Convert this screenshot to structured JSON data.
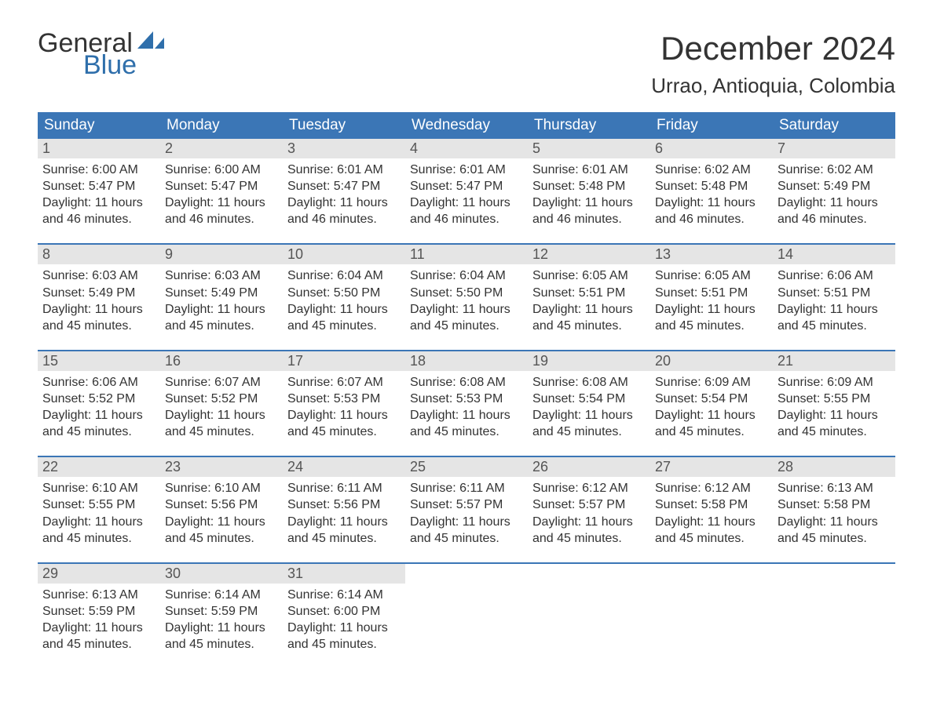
{
  "logo": {
    "general": "General",
    "blue": "Blue",
    "sail_color": "#2f6fab"
  },
  "title": "December 2024",
  "location": "Urrao, Antioquia, Colombia",
  "colors": {
    "header_bg": "#3b76b6",
    "header_text": "#ffffff",
    "daynum_bg": "#e5e5e5",
    "week_divider": "#3b76b6",
    "body_text": "#333333",
    "page_bg": "#ffffff"
  },
  "typography": {
    "title_fontsize": 42,
    "location_fontsize": 26,
    "dayheader_fontsize": 19,
    "daynum_fontsize": 18,
    "cell_fontsize": 16
  },
  "day_headers": [
    "Sunday",
    "Monday",
    "Tuesday",
    "Wednesday",
    "Thursday",
    "Friday",
    "Saturday"
  ],
  "weeks": [
    [
      {
        "n": "1",
        "sr": "6:00 AM",
        "ss": "5:47 PM",
        "dl": "11 hours and 46 minutes."
      },
      {
        "n": "2",
        "sr": "6:00 AM",
        "ss": "5:47 PM",
        "dl": "11 hours and 46 minutes."
      },
      {
        "n": "3",
        "sr": "6:01 AM",
        "ss": "5:47 PM",
        "dl": "11 hours and 46 minutes."
      },
      {
        "n": "4",
        "sr": "6:01 AM",
        "ss": "5:47 PM",
        "dl": "11 hours and 46 minutes."
      },
      {
        "n": "5",
        "sr": "6:01 AM",
        "ss": "5:48 PM",
        "dl": "11 hours and 46 minutes."
      },
      {
        "n": "6",
        "sr": "6:02 AM",
        "ss": "5:48 PM",
        "dl": "11 hours and 46 minutes."
      },
      {
        "n": "7",
        "sr": "6:02 AM",
        "ss": "5:49 PM",
        "dl": "11 hours and 46 minutes."
      }
    ],
    [
      {
        "n": "8",
        "sr": "6:03 AM",
        "ss": "5:49 PM",
        "dl": "11 hours and 45 minutes."
      },
      {
        "n": "9",
        "sr": "6:03 AM",
        "ss": "5:49 PM",
        "dl": "11 hours and 45 minutes."
      },
      {
        "n": "10",
        "sr": "6:04 AM",
        "ss": "5:50 PM",
        "dl": "11 hours and 45 minutes."
      },
      {
        "n": "11",
        "sr": "6:04 AM",
        "ss": "5:50 PM",
        "dl": "11 hours and 45 minutes."
      },
      {
        "n": "12",
        "sr": "6:05 AM",
        "ss": "5:51 PM",
        "dl": "11 hours and 45 minutes."
      },
      {
        "n": "13",
        "sr": "6:05 AM",
        "ss": "5:51 PM",
        "dl": "11 hours and 45 minutes."
      },
      {
        "n": "14",
        "sr": "6:06 AM",
        "ss": "5:51 PM",
        "dl": "11 hours and 45 minutes."
      }
    ],
    [
      {
        "n": "15",
        "sr": "6:06 AM",
        "ss": "5:52 PM",
        "dl": "11 hours and 45 minutes."
      },
      {
        "n": "16",
        "sr": "6:07 AM",
        "ss": "5:52 PM",
        "dl": "11 hours and 45 minutes."
      },
      {
        "n": "17",
        "sr": "6:07 AM",
        "ss": "5:53 PM",
        "dl": "11 hours and 45 minutes."
      },
      {
        "n": "18",
        "sr": "6:08 AM",
        "ss": "5:53 PM",
        "dl": "11 hours and 45 minutes."
      },
      {
        "n": "19",
        "sr": "6:08 AM",
        "ss": "5:54 PM",
        "dl": "11 hours and 45 minutes."
      },
      {
        "n": "20",
        "sr": "6:09 AM",
        "ss": "5:54 PM",
        "dl": "11 hours and 45 minutes."
      },
      {
        "n": "21",
        "sr": "6:09 AM",
        "ss": "5:55 PM",
        "dl": "11 hours and 45 minutes."
      }
    ],
    [
      {
        "n": "22",
        "sr": "6:10 AM",
        "ss": "5:55 PM",
        "dl": "11 hours and 45 minutes."
      },
      {
        "n": "23",
        "sr": "6:10 AM",
        "ss": "5:56 PM",
        "dl": "11 hours and 45 minutes."
      },
      {
        "n": "24",
        "sr": "6:11 AM",
        "ss": "5:56 PM",
        "dl": "11 hours and 45 minutes."
      },
      {
        "n": "25",
        "sr": "6:11 AM",
        "ss": "5:57 PM",
        "dl": "11 hours and 45 minutes."
      },
      {
        "n": "26",
        "sr": "6:12 AM",
        "ss": "5:57 PM",
        "dl": "11 hours and 45 minutes."
      },
      {
        "n": "27",
        "sr": "6:12 AM",
        "ss": "5:58 PM",
        "dl": "11 hours and 45 minutes."
      },
      {
        "n": "28",
        "sr": "6:13 AM",
        "ss": "5:58 PM",
        "dl": "11 hours and 45 minutes."
      }
    ],
    [
      {
        "n": "29",
        "sr": "6:13 AM",
        "ss": "5:59 PM",
        "dl": "11 hours and 45 minutes."
      },
      {
        "n": "30",
        "sr": "6:14 AM",
        "ss": "5:59 PM",
        "dl": "11 hours and 45 minutes."
      },
      {
        "n": "31",
        "sr": "6:14 AM",
        "ss": "6:00 PM",
        "dl": "11 hours and 45 minutes."
      },
      null,
      null,
      null,
      null
    ]
  ],
  "labels": {
    "sunrise": "Sunrise:",
    "sunset": "Sunset:",
    "daylight": "Daylight:"
  }
}
